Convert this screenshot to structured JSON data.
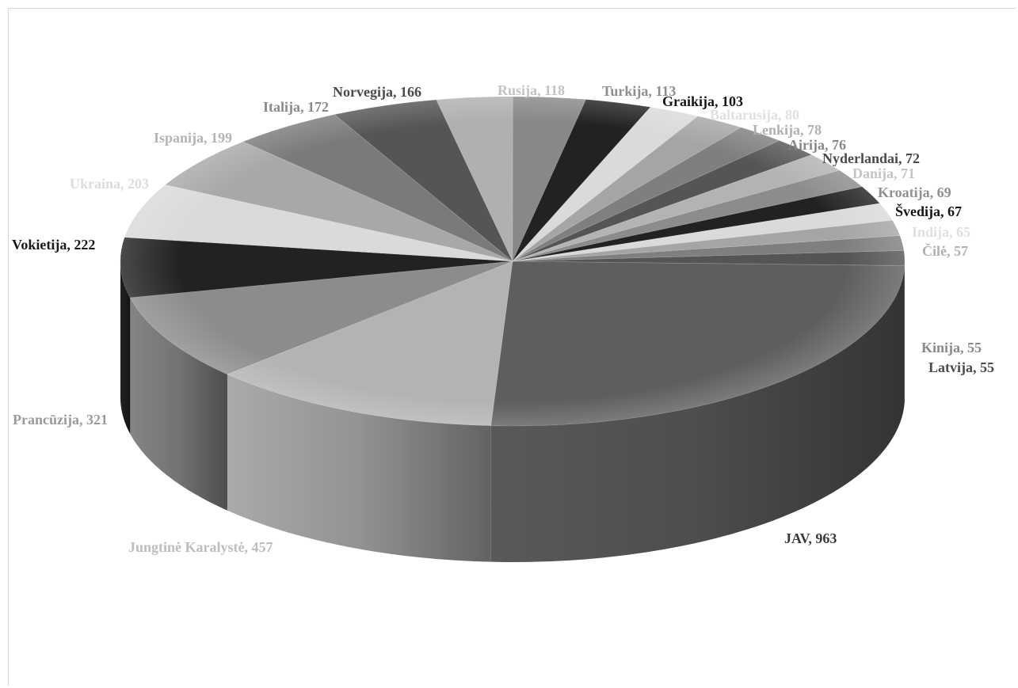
{
  "chart_data": {
    "type": "pie",
    "title": "",
    "slices": [
      {
        "label": "JAV",
        "value": 963,
        "color": "#5e5e5e",
        "label_color": "#3a3a3a"
      },
      {
        "label": "Jungtinė Karalystė",
        "value": 457,
        "color": "#b3b3b3",
        "label_color": "#bdbdbd"
      },
      {
        "label": "Prancūzija",
        "value": 321,
        "color": "#8c8c8c",
        "label_color": "#9a9a9a"
      },
      {
        "label": "Vokietija",
        "value": 222,
        "color": "#222222",
        "label_color": "#1a1a1a"
      },
      {
        "label": "Ukraina",
        "value": 203,
        "color": "#dadada",
        "label_color": "#dcdcdc"
      },
      {
        "label": "Ispanija",
        "value": 199,
        "color": "#a8a8a8",
        "label_color": "#b4b4b4"
      },
      {
        "label": "Italija",
        "value": 172,
        "color": "#7a7a7a",
        "label_color": "#8a8a8a"
      },
      {
        "label": "Norvegija",
        "value": 166,
        "color": "#555555",
        "label_color": "#4a4a4a"
      },
      {
        "label": "Rusija",
        "value": 118,
        "color": "#b0b0b0",
        "label_color": "#c2c2c2"
      },
      {
        "label": "Turkija",
        "value": 113,
        "color": "#888888",
        "label_color": "#8e8e8e"
      },
      {
        "label": "Graikija",
        "value": 103,
        "color": "#222222",
        "label_color": "#151515"
      },
      {
        "label": "Baltarusija",
        "value": 80,
        "color": "#dadada",
        "label_color": "#e0e0e0"
      },
      {
        "label": "Lenkija",
        "value": 78,
        "color": "#a5a5a5",
        "label_color": "#b0b0b0"
      },
      {
        "label": "Airija",
        "value": 76,
        "color": "#7f7f7f",
        "label_color": "#888888"
      },
      {
        "label": "Nyderlandai",
        "value": 72,
        "color": "#555555",
        "label_color": "#4a4a4a"
      },
      {
        "label": "Danija",
        "value": 71,
        "color": "#b3b3b3",
        "label_color": "#c4c4c4"
      },
      {
        "label": "Kroatija",
        "value": 69,
        "color": "#8c8c8c",
        "label_color": "#909090"
      },
      {
        "label": "Švedija",
        "value": 67,
        "color": "#222222",
        "label_color": "#151515"
      },
      {
        "label": "Indija",
        "value": 65,
        "color": "#dadada",
        "label_color": "#e0e0e0"
      },
      {
        "label": "Čilė",
        "value": 57,
        "color": "#a5a5a5",
        "label_color": "#b0b0b0"
      },
      {
        "label": "Kinija",
        "value": 55,
        "color": "#7f7f7f",
        "label_color": "#8a8a8a"
      },
      {
        "label": "Latvija",
        "value": 55,
        "color": "#555555",
        "label_color": "#4a4a4a"
      }
    ],
    "label_format": "{label}, {value}",
    "legend": "none",
    "style": "3d-exploded-disc"
  }
}
